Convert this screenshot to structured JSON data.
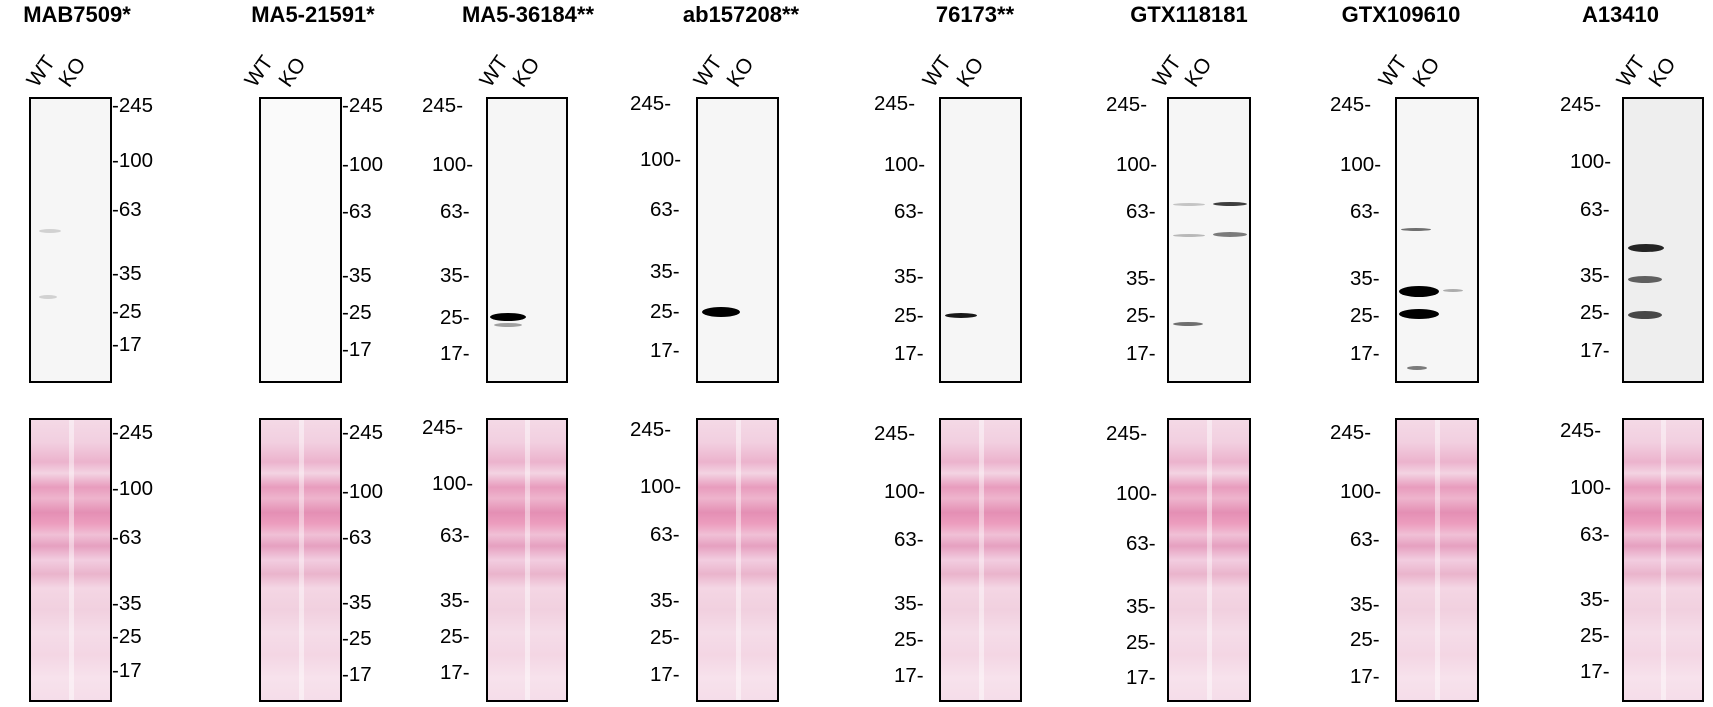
{
  "panels": [
    {
      "title": "MAB7509*",
      "lanes": [
        "WT",
        "KO"
      ],
      "top_markers": [
        "-245",
        "-100",
        "-63",
        "-35",
        "-25",
        "-17"
      ],
      "bottom_markers": [
        "-245",
        "-100",
        "-63",
        "-35",
        "-25",
        "-17"
      ]
    },
    {
      "title": "MA5-21591*",
      "lanes": [
        "WT",
        "KO"
      ],
      "top_markers": [
        "-245",
        "-100",
        "-63",
        "-35",
        "-25",
        "-17"
      ],
      "bottom_markers": [
        "-245",
        "-100",
        "-63",
        "-35",
        "-25",
        "-17"
      ]
    },
    {
      "title": "MA5-36184**",
      "lanes": [
        "WT",
        "KO"
      ],
      "top_markers": [
        "245-",
        "100-",
        "63-",
        "35-",
        "25-",
        "17-"
      ],
      "bottom_markers": [
        "245-",
        "100-",
        "63-",
        "35-",
        "25-",
        "17-"
      ]
    },
    {
      "title": "ab157208**",
      "lanes": [
        "WT",
        "KO"
      ],
      "top_markers": [
        "245-",
        "100-",
        "63-",
        "35-",
        "25-",
        "17-"
      ],
      "bottom_markers": [
        "245-",
        "100-",
        "63-",
        "35-",
        "25-",
        "17-"
      ]
    },
    {
      "title": "76173**",
      "lanes": [
        "WT",
        "KO"
      ],
      "top_markers": [
        "245-",
        "100-",
        "63-",
        "35-",
        "25-",
        "17-"
      ],
      "bottom_markers": [
        "245-",
        "100-",
        "63-",
        "35-",
        "25-",
        "17-"
      ]
    },
    {
      "title": "GTX118181",
      "lanes": [
        "WT",
        "KO"
      ],
      "top_markers": [
        "245-",
        "100-",
        "63-",
        "35-",
        "25-",
        "17-"
      ],
      "bottom_markers": [
        "245-",
        "100-",
        "63-",
        "35-",
        "25-",
        "17-"
      ]
    },
    {
      "title": "GTX109610",
      "lanes": [
        "WT",
        "KO"
      ],
      "top_markers": [
        "245-",
        "100-",
        "63-",
        "35-",
        "25-",
        "17-"
      ],
      "bottom_markers": [
        "245-",
        "100-",
        "63-",
        "35-",
        "25-",
        "17-"
      ]
    },
    {
      "title": "A13410",
      "lanes": [
        "WT",
        "KO"
      ],
      "top_markers": [
        "245-",
        "100-",
        "63-",
        "35-",
        "25-",
        "17-"
      ],
      "bottom_markers": [
        "245-",
        "100-",
        "63-",
        "35-",
        "25-",
        "17-"
      ]
    }
  ]
}
